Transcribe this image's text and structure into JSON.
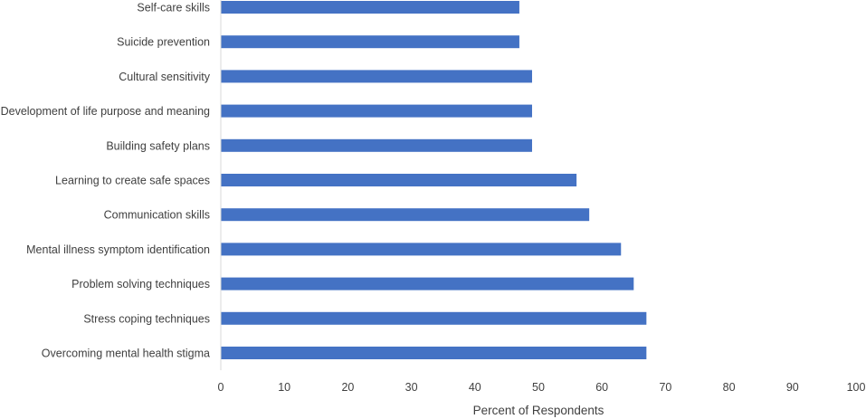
{
  "chart_data": {
    "type": "bar",
    "orientation": "horizontal",
    "title": "",
    "xlabel": "Percent of Respondents",
    "ylabel": "",
    "xlim": [
      0,
      100
    ],
    "xticks": [
      0,
      10,
      20,
      30,
      40,
      50,
      60,
      70,
      80,
      90,
      100
    ],
    "grid": false,
    "bar_color": "#4472C4",
    "categories": [
      "Self-care skills",
      "Suicide prevention",
      "Cultural sensitivity",
      "Development of life purpose and meaning",
      "Building safety plans",
      "Learning to create safe spaces",
      "Communication skills",
      "Mental illness symptom identification",
      "Problem solving techniques",
      "Stress coping techniques",
      "Overcoming mental health stigma"
    ],
    "values": [
      47,
      47,
      49,
      49,
      49,
      56,
      58,
      63,
      65,
      67,
      67
    ]
  }
}
